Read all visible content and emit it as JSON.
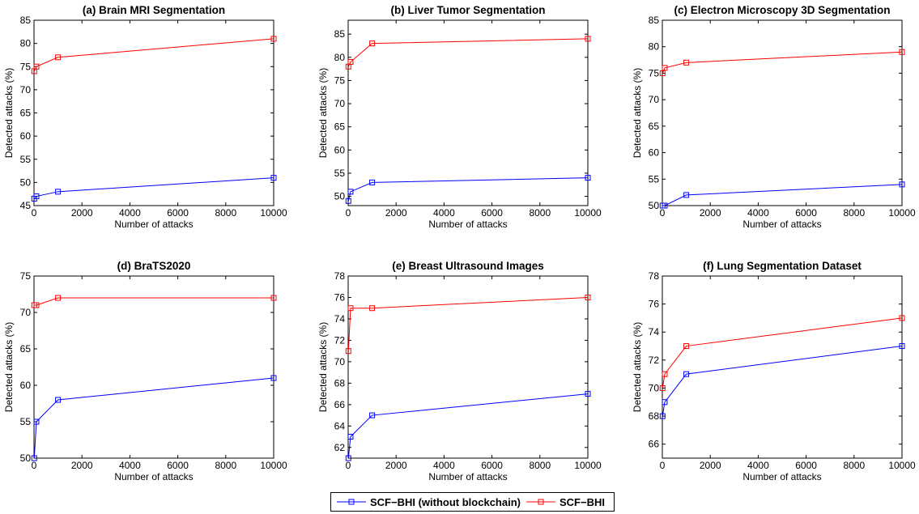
{
  "legend": [
    {
      "name": "SCF−BHI (without blockchain)",
      "color": "#0000ff"
    },
    {
      "name": "SCF−BHI",
      "color": "#ff0000"
    }
  ],
  "chart_data": [
    {
      "type": "line",
      "title": "(a) Brain MRI Segmentation",
      "xlabel": "Number of attacks",
      "ylabel": "Detected attacks (%)",
      "xlim": [
        0,
        10000
      ],
      "ylim": [
        45,
        85
      ],
      "xticks": [
        0,
        2000,
        4000,
        6000,
        8000,
        10000
      ],
      "yticks": [
        45,
        50,
        55,
        60,
        65,
        70,
        75,
        80,
        85
      ],
      "x": [
        10,
        100,
        1000,
        10000
      ],
      "series": [
        {
          "name": "SCF−BHI (without blockchain)",
          "color": "#0000ff",
          "values": [
            46.5,
            47,
            48,
            51
          ]
        },
        {
          "name": "SCF−BHI",
          "color": "#ff0000",
          "values": [
            74,
            75,
            77,
            81
          ]
        }
      ]
    },
    {
      "type": "line",
      "title": "(b) Liver Tumor Segmentation",
      "xlabel": "Number of attacks",
      "ylabel": "Detected attacks (%)",
      "xlim": [
        0,
        10000
      ],
      "ylim": [
        48,
        88
      ],
      "xticks": [
        0,
        2000,
        4000,
        6000,
        8000,
        10000
      ],
      "yticks": [
        50,
        55,
        60,
        65,
        70,
        75,
        80,
        85
      ],
      "x": [
        10,
        100,
        1000,
        10000
      ],
      "series": [
        {
          "name": "SCF−BHI (without blockchain)",
          "color": "#0000ff",
          "values": [
            49,
            51,
            53,
            54
          ]
        },
        {
          "name": "SCF−BHI",
          "color": "#ff0000",
          "values": [
            78,
            79,
            83,
            84
          ]
        }
      ]
    },
    {
      "type": "line",
      "title": "(c) Electron Microscopy 3D Segmentation",
      "xlabel": "Number of attacks",
      "ylabel": "Detected attacks (%)",
      "xlim": [
        0,
        10000
      ],
      "ylim": [
        50,
        85
      ],
      "xticks": [
        0,
        2000,
        4000,
        6000,
        8000,
        10000
      ],
      "yticks": [
        50,
        55,
        60,
        65,
        70,
        75,
        80,
        85
      ],
      "x": [
        10,
        100,
        1000,
        10000
      ],
      "series": [
        {
          "name": "SCF−BHI (without blockchain)",
          "color": "#0000ff",
          "values": [
            50,
            50,
            52,
            54
          ]
        },
        {
          "name": "SCF−BHI",
          "color": "#ff0000",
          "values": [
            75,
            76,
            77,
            79
          ]
        }
      ]
    },
    {
      "type": "line",
      "title": "(d) BraTS2020",
      "xlabel": "Number of attacks",
      "ylabel": "Detected attacks (%)",
      "xlim": [
        0,
        10000
      ],
      "ylim": [
        50,
        75
      ],
      "xticks": [
        0,
        2000,
        4000,
        6000,
        8000,
        10000
      ],
      "yticks": [
        50,
        55,
        60,
        65,
        70,
        75
      ],
      "x": [
        10,
        100,
        1000,
        10000
      ],
      "series": [
        {
          "name": "SCF−BHI (without blockchain)",
          "color": "#0000ff",
          "values": [
            50,
            55,
            58,
            61
          ]
        },
        {
          "name": "SCF−BHI",
          "color": "#ff0000",
          "values": [
            71,
            71,
            72,
            72
          ]
        }
      ]
    },
    {
      "type": "line",
      "title": "(e) Breast Ultrasound Images",
      "xlabel": "Number of attacks",
      "ylabel": "Detected attacks (%)",
      "xlim": [
        0,
        10000
      ],
      "ylim": [
        61,
        78
      ],
      "xticks": [
        0,
        2000,
        4000,
        6000,
        8000,
        10000
      ],
      "yticks": [
        62,
        64,
        66,
        68,
        70,
        72,
        74,
        76,
        78
      ],
      "x": [
        10,
        100,
        1000,
        10000
      ],
      "series": [
        {
          "name": "SCF−BHI (without blockchain)",
          "color": "#0000ff",
          "values": [
            61,
            63,
            65,
            67
          ]
        },
        {
          "name": "SCF−BHI",
          "color": "#ff0000",
          "values": [
            71,
            75,
            75,
            76
          ]
        }
      ]
    },
    {
      "type": "line",
      "title": "(f) Lung Segmentation Dataset",
      "xlabel": "Number of attacks",
      "ylabel": "Detected attacks (%)",
      "xlim": [
        0,
        10000
      ],
      "ylim": [
        65,
        78
      ],
      "xticks": [
        0,
        2000,
        4000,
        6000,
        8000,
        10000
      ],
      "yticks": [
        66,
        68,
        70,
        72,
        74,
        76,
        78
      ],
      "x": [
        10,
        100,
        1000,
        10000
      ],
      "series": [
        {
          "name": "SCF−BHI (without blockchain)",
          "color": "#0000ff",
          "values": [
            68,
            69,
            71,
            73
          ]
        },
        {
          "name": "SCF−BHI",
          "color": "#ff0000",
          "values": [
            70,
            71,
            73,
            75
          ]
        }
      ]
    }
  ]
}
